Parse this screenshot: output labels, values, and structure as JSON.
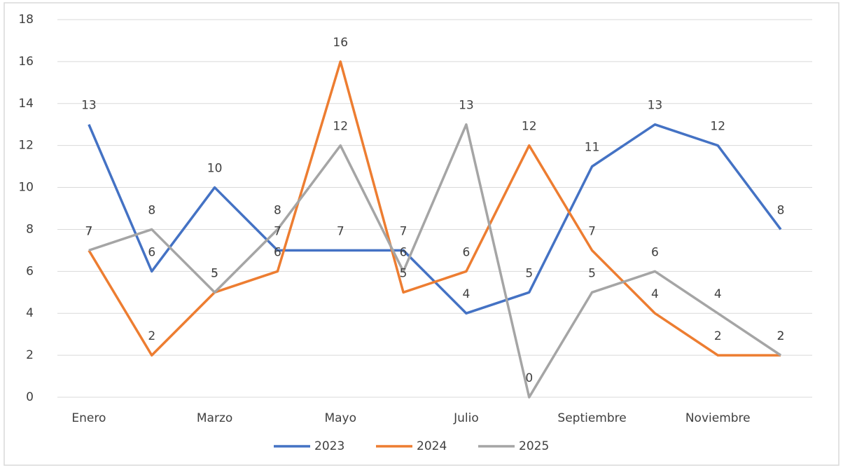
{
  "chart_data": {
    "type": "line",
    "categories": [
      "Enero",
      null,
      "Marzo",
      null,
      "Mayo",
      null,
      "Julio",
      null,
      "Septiembre",
      null,
      "Noviembre",
      null
    ],
    "series": [
      {
        "name": "2023",
        "color": "#4472c4",
        "values": [
          13,
          6,
          10,
          7,
          7,
          7,
          4,
          5,
          11,
          13,
          12,
          8
        ]
      },
      {
        "name": "2024",
        "color": "#ed7d31",
        "values": [
          7,
          2,
          5,
          6,
          16,
          5,
          6,
          12,
          7,
          4,
          2,
          2
        ]
      },
      {
        "name": "2025",
        "color": "#a5a5a5",
        "values": [
          7,
          8,
          5,
          8,
          12,
          6,
          13,
          0,
          5,
          6,
          4,
          2
        ]
      }
    ],
    "ylim": [
      0,
      18
    ],
    "yticks": [
      0,
      2,
      4,
      6,
      8,
      10,
      12,
      14,
      16,
      18
    ],
    "grid": true,
    "legend": "bottom"
  }
}
